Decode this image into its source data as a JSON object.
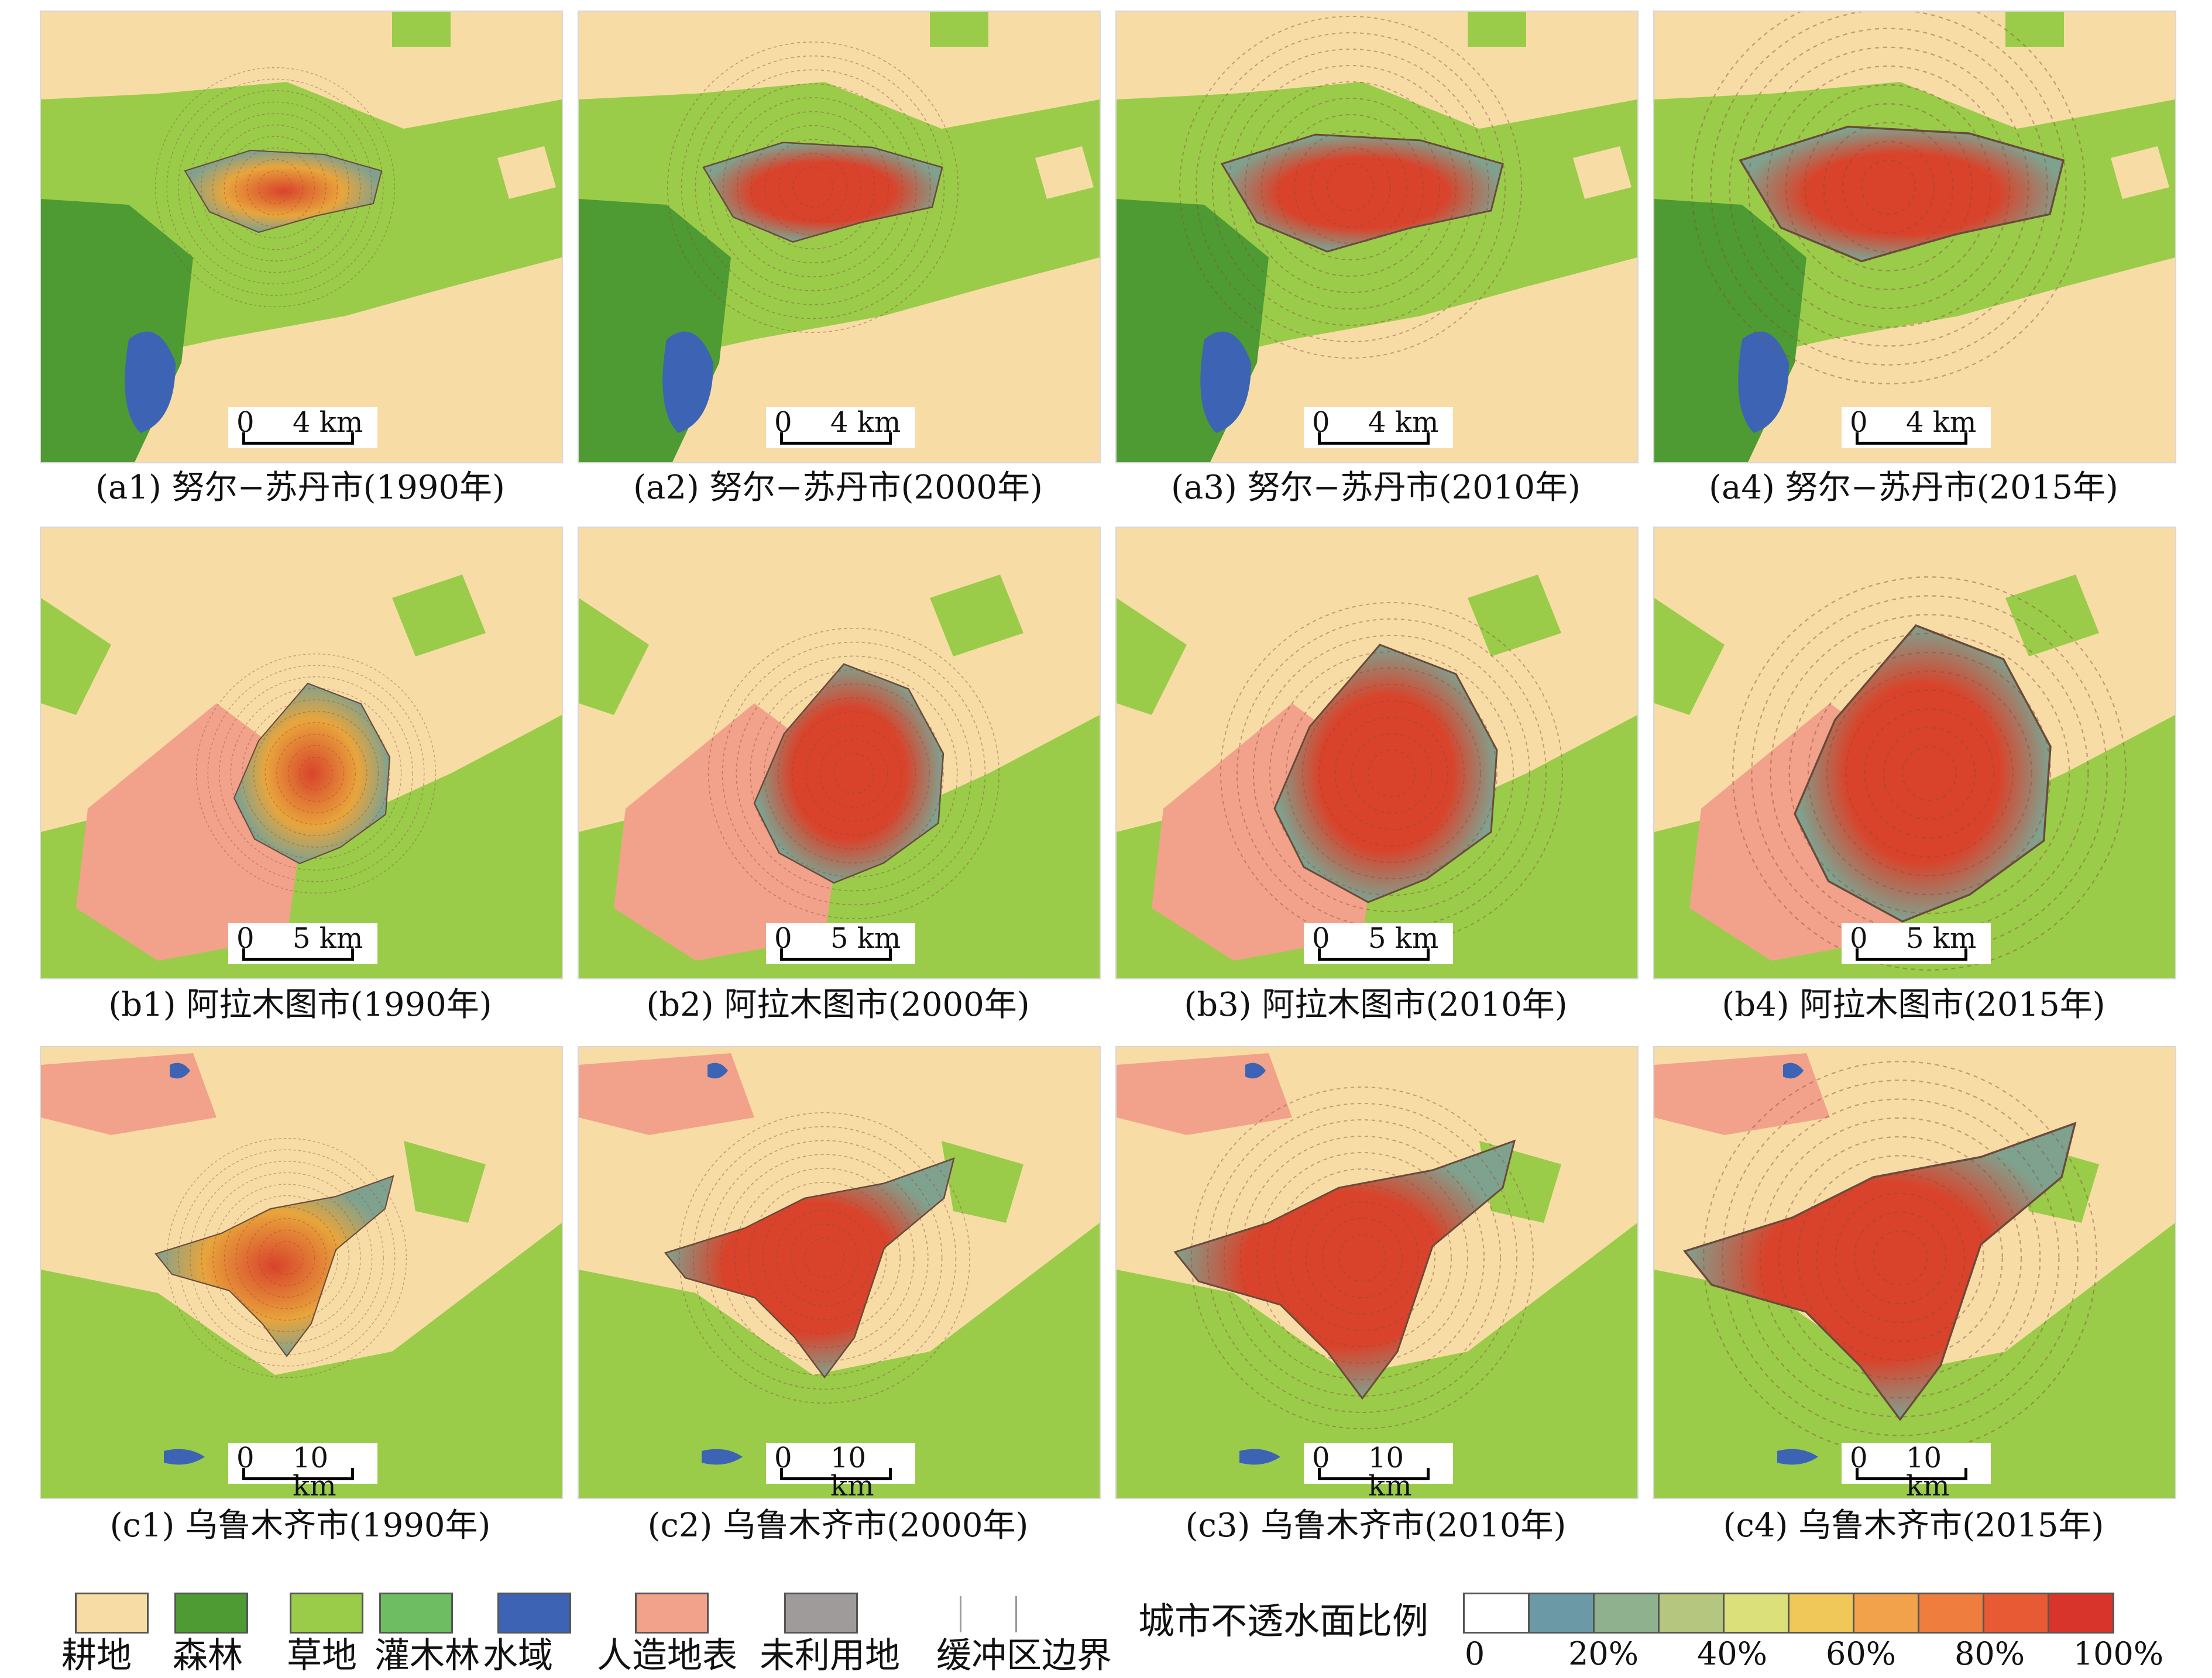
{
  "colors": {
    "cropland": "#f8dca6",
    "forest": "#4e9a33",
    "grassland": "#9acc4a",
    "shrubland": "#6ebd63",
    "water": "#3d64b4",
    "artificial": "#f2a28a",
    "unused": "#a09b9b",
    "urban": "#d9432b",
    "urban_alt": "#e8a53c",
    "urban_mix": "#7fa28f"
  },
  "panels": [
    {
      "caption": "(a1) 努尔−苏丹市(1990年)",
      "scale_zero": "0",
      "scale_dist": "4 km",
      "stage": 1,
      "city": "a"
    },
    {
      "caption": "(a2) 努尔−苏丹市(2000年)",
      "scale_zero": "0",
      "scale_dist": "4 km",
      "stage": 2,
      "city": "a"
    },
    {
      "caption": "(a3) 努尔−苏丹市(2010年)",
      "scale_zero": "0",
      "scale_dist": "4 km",
      "stage": 3,
      "city": "a"
    },
    {
      "caption": "(a4) 努尔−苏丹市(2015年)",
      "scale_zero": "0",
      "scale_dist": "4 km",
      "stage": 4,
      "city": "a"
    },
    {
      "caption": "(b1) 阿拉木图市(1990年)",
      "scale_zero": "0",
      "scale_dist": "5 km",
      "stage": 1,
      "city": "b"
    },
    {
      "caption": "(b2) 阿拉木图市(2000年)",
      "scale_zero": "0",
      "scale_dist": "5 km",
      "stage": 2,
      "city": "b"
    },
    {
      "caption": "(b3) 阿拉木图市(2010年)",
      "scale_zero": "0",
      "scale_dist": "5 km",
      "stage": 3,
      "city": "b"
    },
    {
      "caption": "(b4) 阿拉木图市(2015年)",
      "scale_zero": "0",
      "scale_dist": "5 km",
      "stage": 4,
      "city": "b"
    },
    {
      "caption": "(c1) 乌鲁木齐市(1990年)",
      "scale_zero": "0",
      "scale_dist": "10 km",
      "stage": 1,
      "city": "c"
    },
    {
      "caption": "(c2) 乌鲁木齐市(2000年)",
      "scale_zero": "0",
      "scale_dist": "10 km",
      "stage": 2,
      "city": "c"
    },
    {
      "caption": "(c3) 乌鲁木齐市(2010年)",
      "scale_zero": "0",
      "scale_dist": "10 km",
      "stage": 3,
      "city": "c"
    },
    {
      "caption": "(c4) 乌鲁木齐市(2015年)",
      "scale_zero": "0",
      "scale_dist": "10 km",
      "stage": 4,
      "city": "c"
    }
  ],
  "legend": {
    "land_cover": [
      {
        "label": "耕地",
        "color": "#f8dca6"
      },
      {
        "label": "森林",
        "color": "#4e9a33"
      },
      {
        "label": "草地",
        "color": "#9acc4a"
      },
      {
        "label": "灌木林",
        "color": "#6ebd63"
      },
      {
        "label": "水域",
        "color": "#3d64b4"
      },
      {
        "label": "人造地表",
        "color": "#f2a28a"
      },
      {
        "label": "未利用地",
        "color": "#a09b9b"
      }
    ],
    "buffer_label": "缓冲区边界",
    "impervious_title": "城市不透水面比例",
    "impervious_colors": [
      "#ffffff",
      "#6b9aa6",
      "#8fb18e",
      "#b5c77e",
      "#dce07a",
      "#f0c85a",
      "#f1a24b",
      "#ee7d3e",
      "#e85a34",
      "#d9342b"
    ],
    "impervious_ticks": [
      "0",
      "20%",
      "40%",
      "60%",
      "80%",
      "100%"
    ]
  }
}
